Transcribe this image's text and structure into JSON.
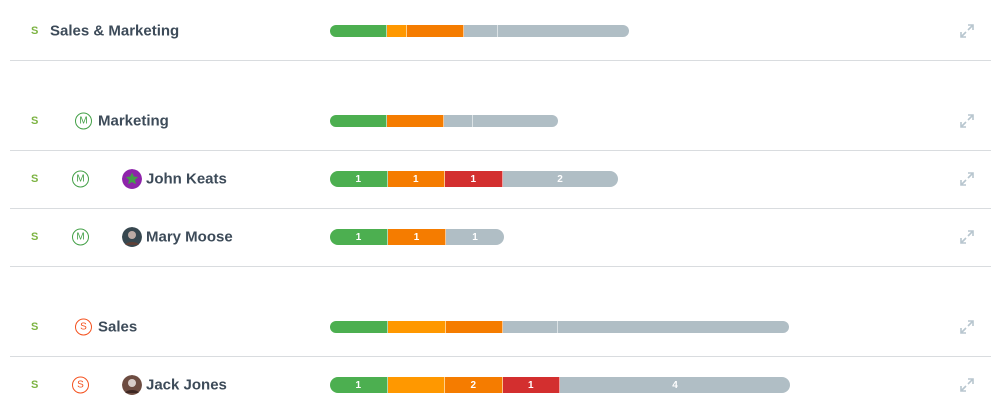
{
  "colors": {
    "green": "#4caf50",
    "light_orange": "#ff9800",
    "orange": "#f57c00",
    "red": "#d32f2f",
    "gray": "#b0bec5"
  },
  "rows": [
    {
      "status": "S",
      "name": "Sales & Marketing",
      "segments": [
        {
          "color": "green",
          "units": 1.0,
          "label": ""
        },
        {
          "color": "light_orange",
          "units": 0.35,
          "label": ""
        },
        {
          "color": "orange",
          "units": 1.0,
          "label": ""
        },
        {
          "color": "gray",
          "units": 0.6,
          "label": ""
        },
        {
          "color": "gray",
          "units": 2.3,
          "label": ""
        }
      ]
    },
    {
      "status": "S",
      "badge": "M",
      "name": "Marketing",
      "segments": [
        {
          "color": "green",
          "units": 1.0,
          "label": ""
        },
        {
          "color": "orange",
          "units": 1.0,
          "label": ""
        },
        {
          "color": "gray",
          "units": 0.5,
          "label": ""
        },
        {
          "color": "gray",
          "units": 1.5,
          "label": ""
        }
      ]
    },
    {
      "status": "S",
      "badge": "M",
      "avatar": "green-star-avatar",
      "name": "John Keats",
      "segments": [
        {
          "color": "green",
          "units": 1,
          "label": "1"
        },
        {
          "color": "orange",
          "units": 1,
          "label": "1"
        },
        {
          "color": "red",
          "units": 1,
          "label": "1"
        },
        {
          "color": "gray",
          "units": 2,
          "label": "2"
        }
      ]
    },
    {
      "status": "S",
      "badge": "M",
      "avatar": "photo-avatar",
      "name": "Mary Moose",
      "segments": [
        {
          "color": "green",
          "units": 1,
          "label": "1"
        },
        {
          "color": "orange",
          "units": 1,
          "label": "1"
        },
        {
          "color": "gray",
          "units": 1,
          "label": "1"
        }
      ]
    },
    {
      "status": "S",
      "badge": "S",
      "name": "Sales",
      "segments": [
        {
          "color": "green",
          "units": 1.0,
          "label": ""
        },
        {
          "color": "light_orange",
          "units": 1.0,
          "label": ""
        },
        {
          "color": "orange",
          "units": 1.0,
          "label": ""
        },
        {
          "color": "gray",
          "units": 0.95,
          "label": ""
        },
        {
          "color": "gray",
          "units": 4.0,
          "label": ""
        }
      ]
    },
    {
      "status": "S",
      "badge": "S",
      "avatar": "photo-avatar",
      "name": "Jack Jones",
      "segments": [
        {
          "color": "green",
          "units": 1,
          "label": "1"
        },
        {
          "color": "light_orange",
          "units": 1,
          "label": ""
        },
        {
          "color": "orange",
          "units": 1,
          "label": "2"
        },
        {
          "color": "red",
          "units": 1,
          "label": "1"
        },
        {
          "color": "gray",
          "units": 4,
          "label": "4"
        }
      ]
    }
  ]
}
